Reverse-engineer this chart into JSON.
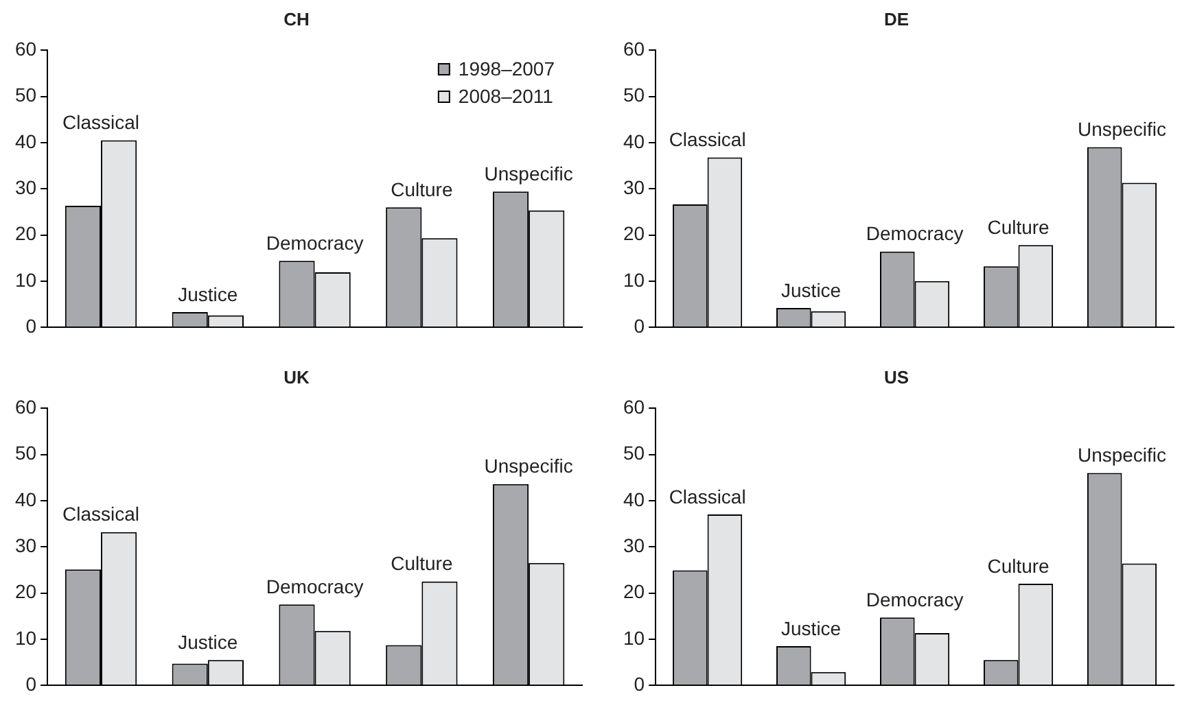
{
  "chart_data": [
    {
      "type": "bar",
      "title": "CH",
      "categories": [
        "Classical",
        "Justice",
        "Democracy",
        "Culture",
        "Unspecific"
      ],
      "series": [
        {
          "name": "1998–2007",
          "color": "#a8a9ac",
          "values": [
            26.3,
            3.3,
            14.4,
            26.0,
            29.4
          ]
        },
        {
          "name": "2008–2011",
          "color": "#e3e4e6",
          "values": [
            40.5,
            2.6,
            11.9,
            19.3,
            25.3
          ]
        }
      ],
      "ylim": [
        0,
        60
      ],
      "yticks": [
        0,
        10,
        20,
        30,
        40,
        50,
        60
      ],
      "legend": "top right"
    },
    {
      "type": "bar",
      "title": "DE",
      "categories": [
        "Classical",
        "Justice",
        "Democracy",
        "Culture",
        "Unspecific"
      ],
      "series": [
        {
          "color": "#a8a9ac",
          "values": [
            26.6,
            4.2,
            16.4,
            13.2,
            39.0
          ]
        },
        {
          "color": "#e3e4e6",
          "values": [
            36.8,
            3.5,
            10.0,
            17.8,
            31.3
          ]
        }
      ],
      "ylim": [
        0,
        60
      ],
      "yticks": [
        0,
        10,
        20,
        30,
        40,
        50,
        60
      ]
    },
    {
      "type": "bar",
      "title": "UK",
      "categories": [
        "Classical",
        "Justice",
        "Democracy",
        "Culture",
        "Unspecific"
      ],
      "series": [
        {
          "color": "#a8a9ac",
          "values": [
            25.1,
            4.7,
            17.5,
            8.7,
            43.6
          ]
        },
        {
          "color": "#e3e4e6",
          "values": [
            33.2,
            5.5,
            11.8,
            22.5,
            26.5
          ]
        }
      ],
      "ylim": [
        0,
        60
      ],
      "yticks": [
        0,
        10,
        20,
        30,
        40,
        50,
        60
      ]
    },
    {
      "type": "bar",
      "title": "US",
      "categories": [
        "Classical",
        "Justice",
        "Democracy",
        "Culture",
        "Unspecific"
      ],
      "series": [
        {
          "color": "#a8a9ac",
          "values": [
            24.9,
            8.5,
            14.7,
            5.5,
            46.0
          ]
        },
        {
          "color": "#e3e4e6",
          "values": [
            37.0,
            2.9,
            11.3,
            22.0,
            26.4
          ]
        }
      ],
      "ylim": [
        0,
        60
      ],
      "yticks": [
        0,
        10,
        20,
        30,
        40,
        50,
        60
      ]
    }
  ]
}
